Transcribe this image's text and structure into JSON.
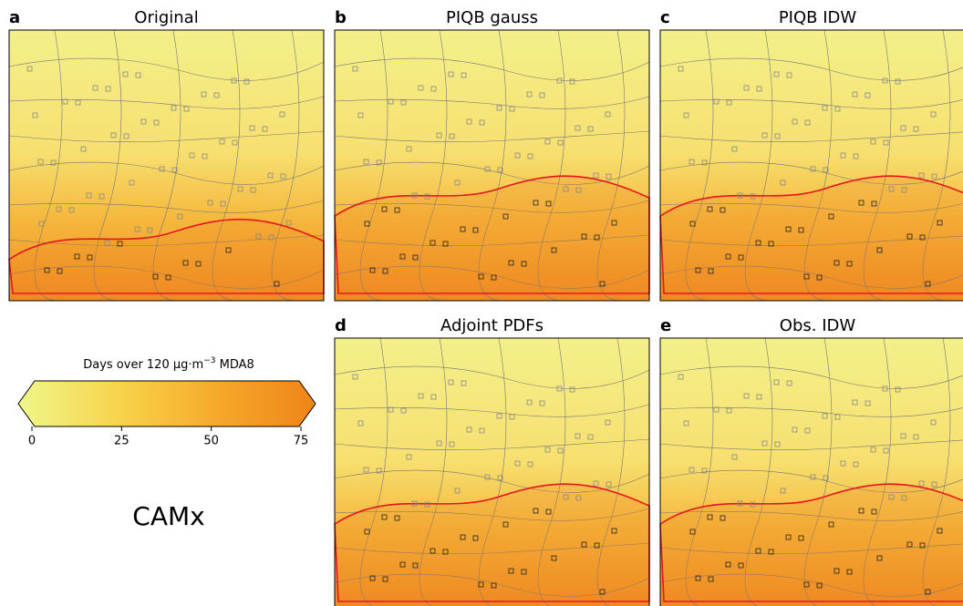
{
  "panels": [
    {
      "letter": "a",
      "title": "Original"
    },
    {
      "letter": "b",
      "title": "PIQB gauss"
    },
    {
      "letter": "c",
      "title": "PIQB IDW"
    },
    {
      "letter": "d",
      "title": "Adjoint PDFs"
    },
    {
      "letter": "e",
      "title": "Obs. IDW"
    }
  ],
  "colorbar": {
    "label": "Days over 120 μg·m",
    "label_sup": "−3",
    "label_end": "MDA8",
    "lim": [
      0,
      75
    ],
    "ticks": [
      0,
      25,
      50,
      75
    ]
  },
  "model": "CAMx"
}
